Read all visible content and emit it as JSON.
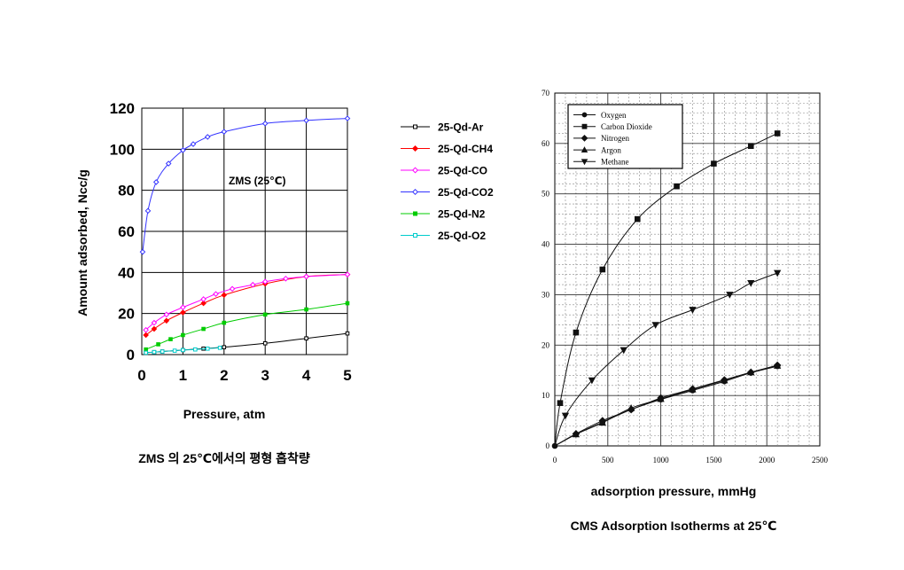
{
  "chart_data": [
    {
      "type": "line",
      "annotation": "ZMS (25℃)",
      "xlabel": "Pressure, atm",
      "ylabel": "Amount adsorbed, Ncc/g",
      "caption": "ZMS 의 25℃에서의 평형 흡착량",
      "xlim": [
        0,
        5
      ],
      "ylim": [
        0,
        120
      ],
      "xticks": [
        "0",
        "1",
        "2",
        "3",
        "4",
        "5"
      ],
      "yticks": [
        "0",
        "20",
        "40",
        "60",
        "80",
        "100",
        "120"
      ],
      "grid": true,
      "legend_position": "right, outside plot",
      "series": [
        {
          "name": "25-Qd-Ar",
          "color": "#000000",
          "marker": "square-open",
          "x": [
            0.1,
            0.3,
            0.5,
            1.0,
            1.5,
            2.0,
            3.0,
            4.0,
            5.0
          ],
          "y": [
            1.0,
            1.2,
            1.5,
            2.2,
            2.9,
            3.6,
            5.5,
            7.9,
            10.3
          ]
        },
        {
          "name": "25-Qd-CH4",
          "color": "#ff0000",
          "marker": "diamond",
          "x": [
            0.1,
            0.3,
            0.6,
            1.0,
            1.5,
            2.0,
            3.0,
            4.0,
            5.0
          ],
          "y": [
            9.5,
            12.5,
            16.5,
            20.5,
            25.0,
            29.0,
            34.5,
            38.0,
            39.0
          ]
        },
        {
          "name": "25-Qd-CO",
          "color": "#ff00ff",
          "marker": "diamond-open",
          "x": [
            0.1,
            0.3,
            0.6,
            1.0,
            1.5,
            1.8,
            2.2,
            2.7,
            3.0,
            3.5,
            4.0,
            5.0
          ],
          "y": [
            12.0,
            15.5,
            19.5,
            23.0,
            27.0,
            29.5,
            32.0,
            34.0,
            35.5,
            37.0,
            38.0,
            39.0
          ]
        },
        {
          "name": "25-Qd-CO2",
          "color": "#3333ff",
          "marker": "diamond-open",
          "x": [
            0.02,
            0.15,
            0.35,
            0.65,
            1.0,
            1.25,
            1.6,
            2.0,
            3.0,
            4.0,
            5.0
          ],
          "y": [
            50.0,
            70.0,
            84.0,
            93.0,
            99.5,
            102.5,
            106.0,
            108.5,
            112.5,
            114.0,
            115.0
          ]
        },
        {
          "name": "25-Qd-N2",
          "color": "#00cc00",
          "marker": "square",
          "x": [
            0.1,
            0.4,
            0.7,
            1.0,
            1.5,
            2.0,
            3.0,
            4.0,
            5.0
          ],
          "y": [
            2.5,
            5.0,
            7.5,
            9.5,
            12.5,
            15.5,
            19.5,
            22.0,
            25.0
          ]
        },
        {
          "name": "25-Qd-O2",
          "color": "#00cccc",
          "marker": "square-open",
          "x": [
            0.1,
            0.3,
            0.5,
            0.8,
            1.0,
            1.3,
            1.6,
            1.9
          ],
          "y": [
            0.9,
            1.2,
            1.5,
            1.9,
            2.2,
            2.5,
            2.9,
            3.3
          ]
        }
      ]
    },
    {
      "type": "line",
      "xlabel": "adsorption pressure, mmHg",
      "ylabel": "",
      "caption": "CMS Adsorption Isotherms at 25℃",
      "xlim": [
        0,
        2500
      ],
      "ylim": [
        0,
        70
      ],
      "xticks": [
        "0",
        "500",
        "1000",
        "1500",
        "2000",
        "2500"
      ],
      "yticks": [
        "0",
        "10",
        "20",
        "30",
        "40",
        "50",
        "60",
        "70"
      ],
      "grid": true,
      "legend_position": "top-left",
      "series": [
        {
          "name": "Oxygen",
          "marker": "circle",
          "x": [
            0,
            200,
            450,
            720,
            1000,
            1300,
            1600,
            1850,
            2100
          ],
          "y": [
            0,
            2.3,
            4.7,
            7.2,
            9.2,
            11.0,
            12.8,
            14.5,
            15.8
          ]
        },
        {
          "name": "Carbon Dioxide",
          "marker": "square",
          "x": [
            0,
            50,
            200,
            450,
            780,
            1150,
            1500,
            1850,
            2100
          ],
          "y": [
            0,
            8.5,
            22.5,
            35.0,
            45.0,
            51.5,
            56.0,
            59.5,
            62.0
          ]
        },
        {
          "name": "Nitrogen",
          "marker": "diamond",
          "x": [
            0,
            200,
            450,
            720,
            1000,
            1300,
            1600,
            1850,
            2100
          ],
          "y": [
            0,
            2.4,
            5.0,
            7.2,
            9.5,
            11.3,
            13.1,
            14.6,
            16.0
          ]
        },
        {
          "name": "Argon",
          "marker": "triangle-up",
          "x": [
            0,
            200,
            450,
            720,
            1000,
            1300,
            1600,
            1850,
            2100
          ],
          "y": [
            0,
            2.3,
            4.6,
            7.5,
            9.3,
            11.2,
            13.0,
            14.6,
            15.9
          ]
        },
        {
          "name": "Methane",
          "marker": "triangle-down",
          "x": [
            0,
            100,
            350,
            650,
            950,
            1300,
            1650,
            1850,
            2100
          ],
          "y": [
            0,
            6.0,
            13.0,
            19.0,
            24.0,
            27.0,
            30.0,
            32.3,
            34.3
          ]
        }
      ]
    }
  ]
}
